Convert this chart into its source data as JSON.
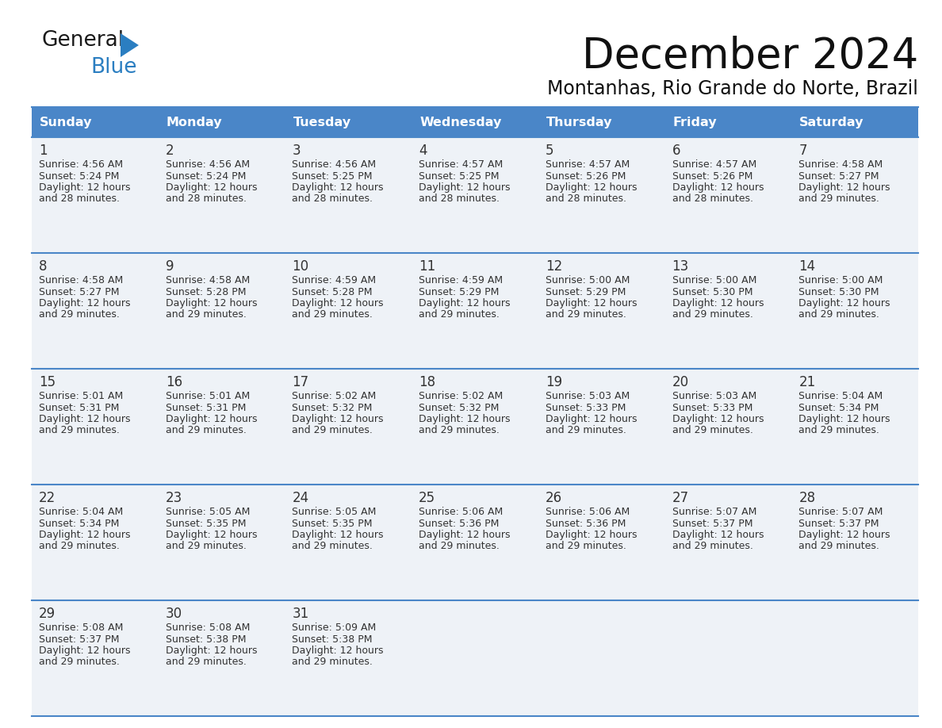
{
  "title": "December 2024",
  "subtitle": "Montanhas, Rio Grande do Norte, Brazil",
  "header_bg": "#4a86c8",
  "header_text_color": "#ffffff",
  "days_of_week": [
    "Sunday",
    "Monday",
    "Tuesday",
    "Wednesday",
    "Thursday",
    "Friday",
    "Saturday"
  ],
  "weeks": [
    [
      {
        "day": 1,
        "sunrise": "4:56 AM",
        "sunset": "5:24 PM",
        "daylight_line1": "Daylight: 12 hours",
        "daylight_line2": "and 28 minutes."
      },
      {
        "day": 2,
        "sunrise": "4:56 AM",
        "sunset": "5:24 PM",
        "daylight_line1": "Daylight: 12 hours",
        "daylight_line2": "and 28 minutes."
      },
      {
        "day": 3,
        "sunrise": "4:56 AM",
        "sunset": "5:25 PM",
        "daylight_line1": "Daylight: 12 hours",
        "daylight_line2": "and 28 minutes."
      },
      {
        "day": 4,
        "sunrise": "4:57 AM",
        "sunset": "5:25 PM",
        "daylight_line1": "Daylight: 12 hours",
        "daylight_line2": "and 28 minutes."
      },
      {
        "day": 5,
        "sunrise": "4:57 AM",
        "sunset": "5:26 PM",
        "daylight_line1": "Daylight: 12 hours",
        "daylight_line2": "and 28 minutes."
      },
      {
        "day": 6,
        "sunrise": "4:57 AM",
        "sunset": "5:26 PM",
        "daylight_line1": "Daylight: 12 hours",
        "daylight_line2": "and 28 minutes."
      },
      {
        "day": 7,
        "sunrise": "4:58 AM",
        "sunset": "5:27 PM",
        "daylight_line1": "Daylight: 12 hours",
        "daylight_line2": "and 29 minutes."
      }
    ],
    [
      {
        "day": 8,
        "sunrise": "4:58 AM",
        "sunset": "5:27 PM",
        "daylight_line1": "Daylight: 12 hours",
        "daylight_line2": "and 29 minutes."
      },
      {
        "day": 9,
        "sunrise": "4:58 AM",
        "sunset": "5:28 PM",
        "daylight_line1": "Daylight: 12 hours",
        "daylight_line2": "and 29 minutes."
      },
      {
        "day": 10,
        "sunrise": "4:59 AM",
        "sunset": "5:28 PM",
        "daylight_line1": "Daylight: 12 hours",
        "daylight_line2": "and 29 minutes."
      },
      {
        "day": 11,
        "sunrise": "4:59 AM",
        "sunset": "5:29 PM",
        "daylight_line1": "Daylight: 12 hours",
        "daylight_line2": "and 29 minutes."
      },
      {
        "day": 12,
        "sunrise": "5:00 AM",
        "sunset": "5:29 PM",
        "daylight_line1": "Daylight: 12 hours",
        "daylight_line2": "and 29 minutes."
      },
      {
        "day": 13,
        "sunrise": "5:00 AM",
        "sunset": "5:30 PM",
        "daylight_line1": "Daylight: 12 hours",
        "daylight_line2": "and 29 minutes."
      },
      {
        "day": 14,
        "sunrise": "5:00 AM",
        "sunset": "5:30 PM",
        "daylight_line1": "Daylight: 12 hours",
        "daylight_line2": "and 29 minutes."
      }
    ],
    [
      {
        "day": 15,
        "sunrise": "5:01 AM",
        "sunset": "5:31 PM",
        "daylight_line1": "Daylight: 12 hours",
        "daylight_line2": "and 29 minutes."
      },
      {
        "day": 16,
        "sunrise": "5:01 AM",
        "sunset": "5:31 PM",
        "daylight_line1": "Daylight: 12 hours",
        "daylight_line2": "and 29 minutes."
      },
      {
        "day": 17,
        "sunrise": "5:02 AM",
        "sunset": "5:32 PM",
        "daylight_line1": "Daylight: 12 hours",
        "daylight_line2": "and 29 minutes."
      },
      {
        "day": 18,
        "sunrise": "5:02 AM",
        "sunset": "5:32 PM",
        "daylight_line1": "Daylight: 12 hours",
        "daylight_line2": "and 29 minutes."
      },
      {
        "day": 19,
        "sunrise": "5:03 AM",
        "sunset": "5:33 PM",
        "daylight_line1": "Daylight: 12 hours",
        "daylight_line2": "and 29 minutes."
      },
      {
        "day": 20,
        "sunrise": "5:03 AM",
        "sunset": "5:33 PM",
        "daylight_line1": "Daylight: 12 hours",
        "daylight_line2": "and 29 minutes."
      },
      {
        "day": 21,
        "sunrise": "5:04 AM",
        "sunset": "5:34 PM",
        "daylight_line1": "Daylight: 12 hours",
        "daylight_line2": "and 29 minutes."
      }
    ],
    [
      {
        "day": 22,
        "sunrise": "5:04 AM",
        "sunset": "5:34 PM",
        "daylight_line1": "Daylight: 12 hours",
        "daylight_line2": "and 29 minutes."
      },
      {
        "day": 23,
        "sunrise": "5:05 AM",
        "sunset": "5:35 PM",
        "daylight_line1": "Daylight: 12 hours",
        "daylight_line2": "and 29 minutes."
      },
      {
        "day": 24,
        "sunrise": "5:05 AM",
        "sunset": "5:35 PM",
        "daylight_line1": "Daylight: 12 hours",
        "daylight_line2": "and 29 minutes."
      },
      {
        "day": 25,
        "sunrise": "5:06 AM",
        "sunset": "5:36 PM",
        "daylight_line1": "Daylight: 12 hours",
        "daylight_line2": "and 29 minutes."
      },
      {
        "day": 26,
        "sunrise": "5:06 AM",
        "sunset": "5:36 PM",
        "daylight_line1": "Daylight: 12 hours",
        "daylight_line2": "and 29 minutes."
      },
      {
        "day": 27,
        "sunrise": "5:07 AM",
        "sunset": "5:37 PM",
        "daylight_line1": "Daylight: 12 hours",
        "daylight_line2": "and 29 minutes."
      },
      {
        "day": 28,
        "sunrise": "5:07 AM",
        "sunset": "5:37 PM",
        "daylight_line1": "Daylight: 12 hours",
        "daylight_line2": "and 29 minutes."
      }
    ],
    [
      {
        "day": 29,
        "sunrise": "5:08 AM",
        "sunset": "5:37 PM",
        "daylight_line1": "Daylight: 12 hours",
        "daylight_line2": "and 29 minutes."
      },
      {
        "day": 30,
        "sunrise": "5:08 AM",
        "sunset": "5:38 PM",
        "daylight_line1": "Daylight: 12 hours",
        "daylight_line2": "and 29 minutes."
      },
      {
        "day": 31,
        "sunrise": "5:09 AM",
        "sunset": "5:38 PM",
        "daylight_line1": "Daylight: 12 hours",
        "daylight_line2": "and 29 minutes."
      },
      null,
      null,
      null,
      null
    ]
  ],
  "logo_general_color": "#1a1a1a",
  "logo_blue_color": "#2b7ec1",
  "cell_bg": "#eef2f7",
  "border_color": "#4a86c8",
  "text_color": "#333333",
  "day_number_color": "#333333"
}
